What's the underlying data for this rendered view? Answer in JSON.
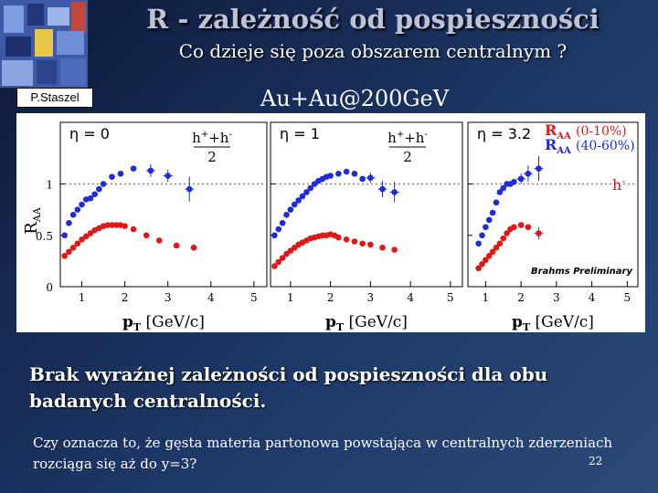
{
  "slide": {
    "title": "R -  zależność od pospieszności",
    "subtitle": "Co dzieje się poza obszarem centralnym ?",
    "author": "P.Staszel",
    "system": "Au+Au@200GeV",
    "conclusion": "Brak wyraźnej zależności od pospieszności dla obu badanych centralności.",
    "question": "Czy oznacza to, że gęsta materia partonowa powstająca w centralnych zderzeniach rozciąga się aż do y=3?",
    "slide_number": "22"
  },
  "colors": {
    "blue_series": "#1f2bd8",
    "red_series": "#e01818",
    "title_text": "#bcc3d6"
  },
  "chart_data": {
    "type": "scatter",
    "ylabel": "R",
    "ylabel_sub": "AA",
    "xlabel": "p",
    "xlabel_sub": "T",
    "xlabel_unit": " [GeV/c]",
    "xlim": [
      0.5,
      5.3
    ],
    "ylim": [
      0,
      1.6
    ],
    "xticks": [
      1,
      2,
      3,
      4,
      5
    ],
    "xtick_labels": [
      "1",
      "2",
      "3",
      "4",
      "5"
    ],
    "yticks": [
      0,
      0.5,
      1
    ],
    "ytick_labels": [
      "0",
      "0.5",
      "1"
    ],
    "reference_line": 1,
    "particle_label": "h",
    "particle_superscript": "+",
    "particle_superscript2": "-",
    "fraction_denominator": "2",
    "legend": {
      "central_label": "R",
      "central_sub": "AA",
      "central_text": " (0-10%)",
      "peripheral_label": "R",
      "peripheral_sub": "AA",
      "peripheral_text": " (40-60%)",
      "particle_label": "h",
      "particle_sup": "-"
    },
    "watermark": "Brahms Preliminary",
    "panels": [
      {
        "label": "η = 0",
        "series": [
          {
            "name": "RAA (40-60%)",
            "color": "blue",
            "x": [
              0.6,
              0.7,
              0.8,
              0.9,
              1.0,
              1.1,
              1.2,
              1.3,
              1.4,
              1.5,
              1.7,
              1.9,
              2.2,
              2.6,
              3.0,
              3.5
            ],
            "y": [
              0.5,
              0.62,
              0.7,
              0.75,
              0.8,
              0.85,
              0.86,
              0.9,
              0.95,
              1.0,
              1.07,
              1.1,
              1.15,
              1.13,
              1.08,
              0.95
            ],
            "err": [
              0,
              0,
              0,
              0,
              0,
              0,
              0,
              0,
              0,
              0,
              0,
              0,
              0,
              0.06,
              0.06,
              0.12
            ]
          },
          {
            "name": "RAA (0-10%)",
            "color": "red",
            "x": [
              0.6,
              0.7,
              0.8,
              0.9,
              1.0,
              1.1,
              1.2,
              1.3,
              1.4,
              1.5,
              1.6,
              1.7,
              1.8,
              1.9,
              2.0,
              2.2,
              2.5,
              2.8,
              3.2,
              3.6
            ],
            "y": [
              0.3,
              0.34,
              0.38,
              0.42,
              0.46,
              0.49,
              0.52,
              0.55,
              0.57,
              0.59,
              0.6,
              0.6,
              0.6,
              0.6,
              0.59,
              0.56,
              0.5,
              0.45,
              0.4,
              0.38
            ],
            "err": [
              0,
              0,
              0,
              0,
              0,
              0,
              0,
              0,
              0,
              0,
              0,
              0,
              0,
              0,
              0,
              0,
              0,
              0,
              0,
              0
            ]
          }
        ]
      },
      {
        "label": "η = 1",
        "series": [
          {
            "name": "RAA (40-60%)",
            "color": "blue",
            "x": [
              0.6,
              0.7,
              0.8,
              0.9,
              1.0,
              1.1,
              1.2,
              1.3,
              1.4,
              1.5,
              1.6,
              1.7,
              1.8,
              1.9,
              2.0,
              2.2,
              2.4,
              2.6,
              2.8,
              3.0,
              3.3,
              3.6
            ],
            "y": [
              0.5,
              0.56,
              0.62,
              0.7,
              0.75,
              0.8,
              0.84,
              0.88,
              0.92,
              0.96,
              1.0,
              1.03,
              1.05,
              1.07,
              1.08,
              1.1,
              1.12,
              1.1,
              1.05,
              1.06,
              0.95,
              0.92
            ],
            "err": [
              0,
              0,
              0,
              0,
              0,
              0,
              0,
              0,
              0,
              0,
              0,
              0,
              0,
              0,
              0,
              0,
              0,
              0,
              0,
              0.05,
              0.08,
              0.1
            ]
          },
          {
            "name": "RAA (0-10%)",
            "color": "red",
            "x": [
              0.6,
              0.7,
              0.8,
              0.9,
              1.0,
              1.1,
              1.2,
              1.3,
              1.4,
              1.5,
              1.6,
              1.7,
              1.8,
              1.9,
              2.0,
              2.1,
              2.2,
              2.4,
              2.6,
              2.8,
              3.0,
              3.3,
              3.6
            ],
            "y": [
              0.2,
              0.24,
              0.28,
              0.32,
              0.35,
              0.38,
              0.41,
              0.43,
              0.45,
              0.47,
              0.48,
              0.49,
              0.5,
              0.5,
              0.51,
              0.5,
              0.48,
              0.46,
              0.44,
              0.42,
              0.41,
              0.38,
              0.36
            ],
            "err": [
              0,
              0,
              0,
              0,
              0,
              0,
              0,
              0,
              0,
              0,
              0,
              0,
              0,
              0,
              0,
              0,
              0,
              0,
              0,
              0,
              0,
              0,
              0
            ]
          }
        ]
      },
      {
        "label": "η = 3.2",
        "series": [
          {
            "name": "RAA (40-60%)",
            "color": "blue",
            "x": [
              0.8,
              0.9,
              1.0,
              1.1,
              1.2,
              1.3,
              1.4,
              1.5,
              1.6,
              1.7,
              1.8,
              2.0,
              2.2,
              2.5
            ],
            "y": [
              0.42,
              0.5,
              0.58,
              0.65,
              0.72,
              0.82,
              0.92,
              0.96,
              1.0,
              1.0,
              1.02,
              1.05,
              1.1,
              1.15
            ],
            "err": [
              0,
              0,
              0,
              0,
              0,
              0,
              0,
              0,
              0,
              0,
              0,
              0.05,
              0.08,
              0.12
            ]
          },
          {
            "name": "RAA (0-10%)",
            "color": "red",
            "x": [
              0.8,
              0.9,
              1.0,
              1.1,
              1.2,
              1.3,
              1.4,
              1.5,
              1.6,
              1.7,
              1.8,
              2.0,
              2.2,
              2.5
            ],
            "y": [
              0.18,
              0.22,
              0.26,
              0.3,
              0.34,
              0.38,
              0.42,
              0.47,
              0.52,
              0.56,
              0.58,
              0.6,
              0.58,
              0.52
            ],
            "err": [
              0,
              0,
              0,
              0,
              0,
              0,
              0,
              0,
              0,
              0,
              0,
              0,
              0,
              0.06
            ]
          }
        ]
      }
    ]
  }
}
